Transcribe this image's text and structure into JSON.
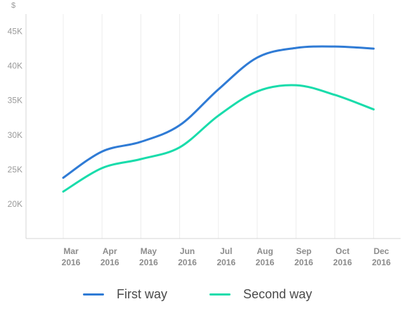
{
  "chart_data": {
    "type": "line",
    "unit_label": "$",
    "y_ticks": [
      "20K",
      "25K",
      "30K",
      "35K",
      "40K",
      "45K"
    ],
    "ylim": [
      15000,
      47500
    ],
    "categories": [
      {
        "month": "Mar",
        "year": "2016"
      },
      {
        "month": "Apr",
        "year": "2016"
      },
      {
        "month": "May",
        "year": "2016"
      },
      {
        "month": "Jun",
        "year": "2016"
      },
      {
        "month": "Jul",
        "year": "2016"
      },
      {
        "month": "Aug",
        "year": "2016"
      },
      {
        "month": "Sep",
        "year": "2016"
      },
      {
        "month": "Oct",
        "year": "2016"
      },
      {
        "month": "Dec",
        "year": "2016"
      }
    ],
    "series": [
      {
        "name": "First way",
        "color": "#2f7bd5",
        "values": [
          23800,
          27600,
          29000,
          31400,
          36600,
          41200,
          42600,
          42800,
          42500
        ]
      },
      {
        "name": "Second way",
        "color": "#19dcab",
        "values": [
          21800,
          25200,
          26500,
          28200,
          32800,
          36300,
          37200,
          35800,
          33700
        ]
      }
    ],
    "grid": "vertical"
  }
}
